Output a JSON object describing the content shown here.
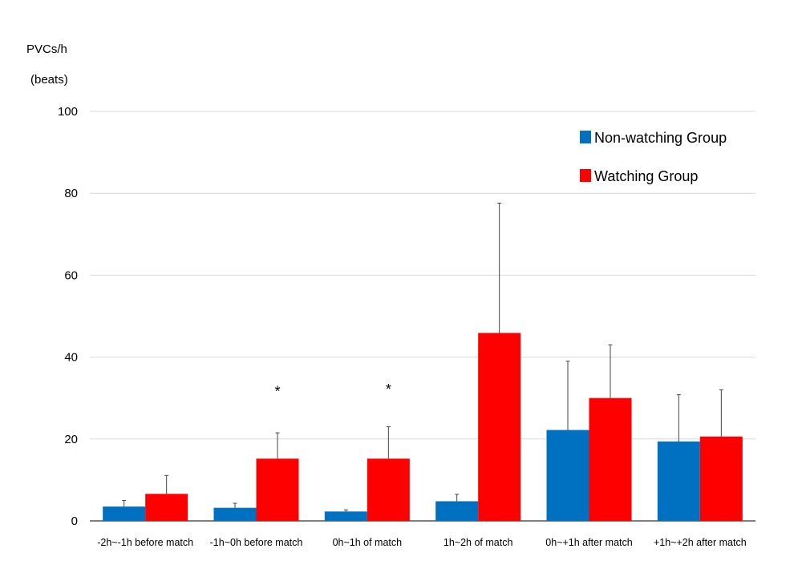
{
  "chart_data": {
    "type": "bar",
    "ylabel_line1": "PVCs/h",
    "ylabel_line2": "(beats)",
    "ylim": [
      0,
      100
    ],
    "yticks": [
      0,
      20,
      40,
      60,
      80,
      100
    ],
    "grid": true,
    "legend_position": "top-right",
    "categories": [
      "-2h~-1h before match",
      "-1h~0h before match",
      "0h~1h of match",
      "1h~2h of match",
      "0h~+1h after match",
      "+1h~+2h after match"
    ],
    "series": [
      {
        "name": "Non-watching Group",
        "color": "#0070c0",
        "values": [
          3.5,
          3.2,
          2.3,
          4.8,
          22.2,
          19.4
        ],
        "error_upper": [
          5.0,
          4.3,
          2.7,
          6.5,
          39.0,
          30.8
        ]
      },
      {
        "name": "Watching Group",
        "color": "#ff0000",
        "values": [
          6.6,
          15.2,
          15.2,
          45.9,
          30.0,
          20.6
        ],
        "error_upper": [
          11.1,
          21.5,
          23.0,
          77.6,
          43.0,
          32.0
        ]
      }
    ],
    "annotations": [
      {
        "text": "*",
        "category_index": 1,
        "y": 32
      },
      {
        "text": "*",
        "category_index": 2,
        "y": 32.5
      }
    ]
  }
}
